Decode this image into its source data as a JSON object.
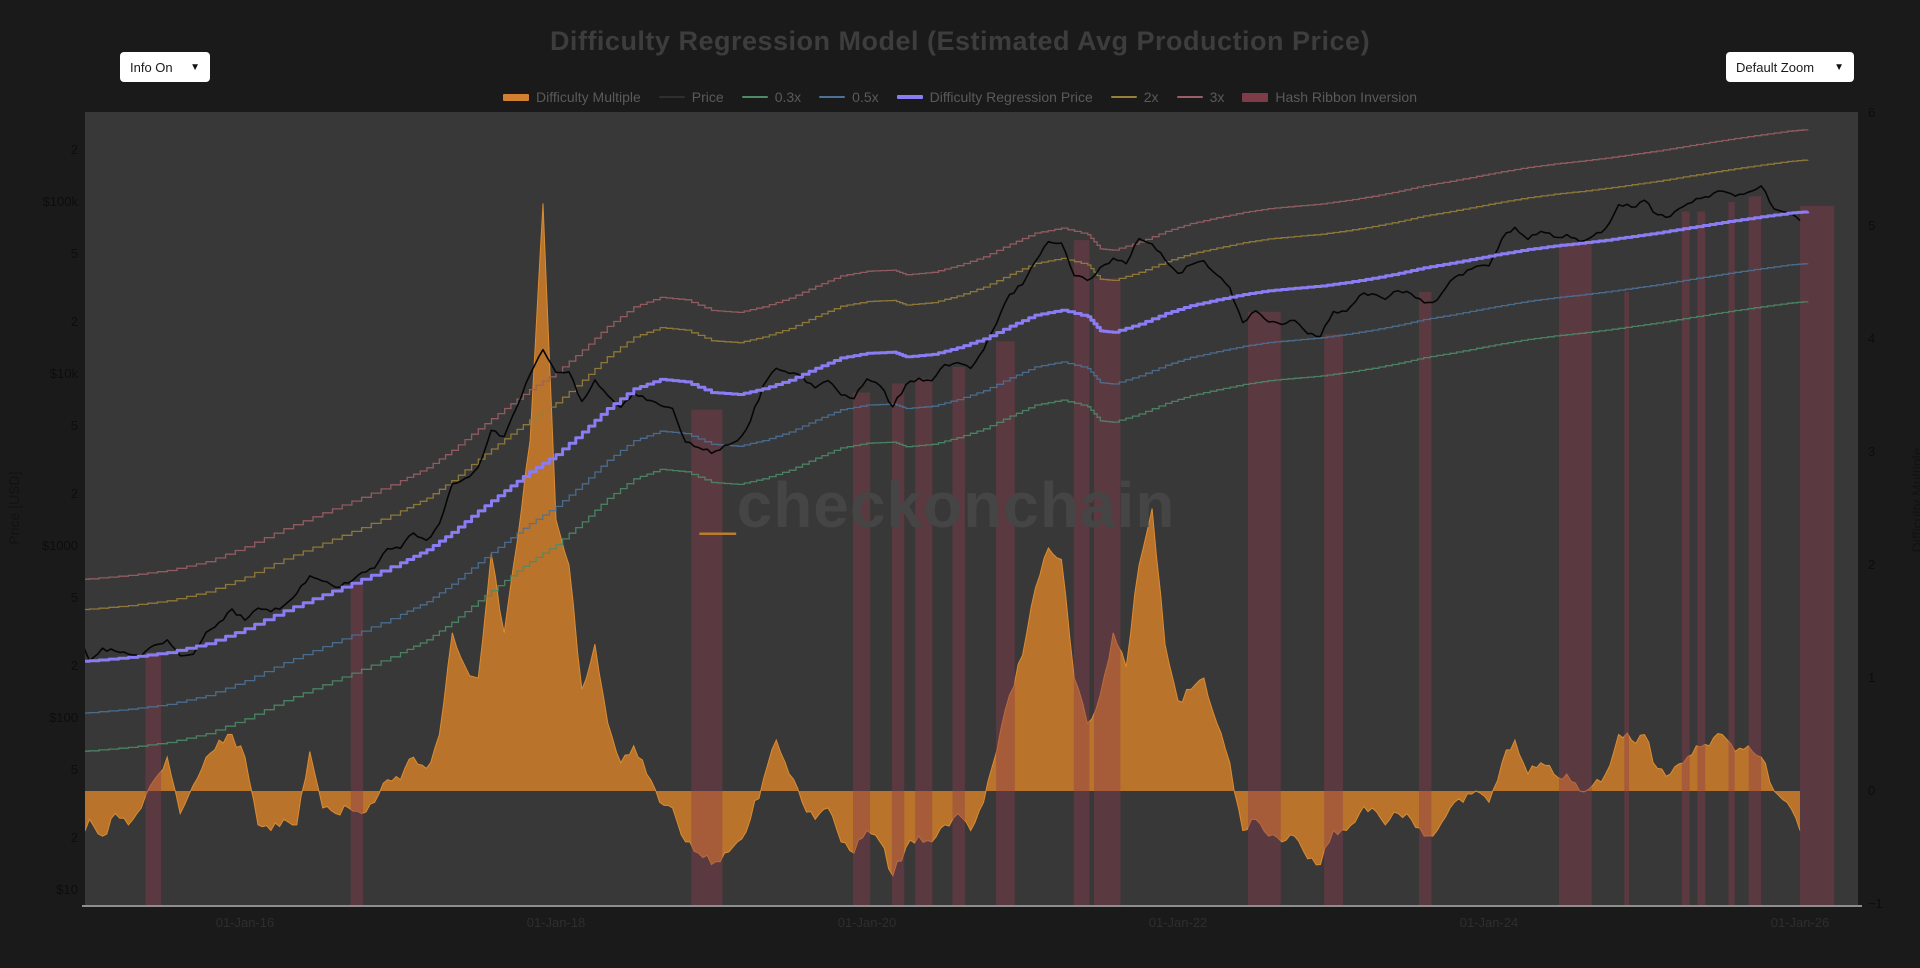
{
  "header": {
    "title": "Difficulty Regression Model (Estimated Avg Production Price)",
    "info_dropdown": {
      "label": "Info On",
      "arrow": "▼"
    },
    "zoom_dropdown": {
      "label": "Default Zoom",
      "arrow": "▼"
    }
  },
  "watermark": {
    "underscore": "_",
    "text": "checkonchain"
  },
  "legend": {
    "items": [
      {
        "label": "Difficulty Multiple",
        "color": "#d08030",
        "swatch": "thick"
      },
      {
        "label": "Price",
        "color": "#2f2f2f",
        "swatch": "line"
      },
      {
        "label": "0.3x",
        "color": "#4e8a68",
        "swatch": "line"
      },
      {
        "label": "0.5x",
        "color": "#4c7196",
        "swatch": "line"
      },
      {
        "label": "Difficulty Regression Price",
        "color": "#8a7cf2",
        "swatch": "medium"
      },
      {
        "label": "2x",
        "color": "#97803a",
        "swatch": "line"
      },
      {
        "label": "3x",
        "color": "#9a5f66",
        "swatch": "line"
      },
      {
        "label": "Hash Ribbon Inversion",
        "color": "#7e3b48",
        "swatch": "bar"
      }
    ]
  },
  "axes": {
    "y_price": {
      "title": "Price [USD]",
      "ticks": [
        {
          "label": "2",
          "value": 200000
        },
        {
          "label": "$100k",
          "value": 100000
        },
        {
          "label": "5",
          "value": 50000
        },
        {
          "label": "2",
          "value": 20000
        },
        {
          "label": "$10k",
          "value": 10000
        },
        {
          "label": "5",
          "value": 5000
        },
        {
          "label": "2",
          "value": 2000
        },
        {
          "label": "$1000",
          "value": 1000
        },
        {
          "label": "5",
          "value": 500
        },
        {
          "label": "2",
          "value": 200
        },
        {
          "label": "$100",
          "value": 100
        },
        {
          "label": "5",
          "value": 50
        },
        {
          "label": "2",
          "value": 20
        },
        {
          "label": "$10",
          "value": 10
        }
      ]
    },
    "y_multiple": {
      "title": "Difficulty Multiple",
      "ticks": [
        {
          "label": "6",
          "value": 6
        },
        {
          "label": "5",
          "value": 5
        },
        {
          "label": "4",
          "value": 4
        },
        {
          "label": "3",
          "value": 3
        },
        {
          "label": "2",
          "value": 2
        },
        {
          "label": "1",
          "value": 1
        },
        {
          "label": "0",
          "value": 0
        },
        {
          "label": "−1",
          "value": -1
        }
      ]
    },
    "x": {
      "ticks": [
        {
          "label": "01-Jan-16",
          "year": 2016
        },
        {
          "label": "01-Jan-18",
          "year": 2018
        },
        {
          "label": "01-Jan-20",
          "year": 2020
        },
        {
          "label": "01-Jan-22",
          "year": 2022
        },
        {
          "label": "01-Jan-24",
          "year": 2024
        },
        {
          "label": "01-Jan-26",
          "year": 2026
        }
      ]
    }
  },
  "chart_data": {
    "type": "line",
    "title": "Difficulty Regression Model (Estimated Avg Production Price)",
    "x_range_years": [
      2014.97,
      2026.37
    ],
    "y_axis_left": {
      "label": "Price [USD]",
      "scale": "log",
      "range": [
        8.2,
        333000
      ]
    },
    "y_axis_right": {
      "label": "Difficulty Multiple",
      "scale": "linear",
      "range": [
        -1.07,
        6.02
      ]
    },
    "monthly": {
      "start_year": 2014.8333,
      "step_years": 0.0833333
    },
    "series": [
      {
        "name": "Difficulty Multiple",
        "axis": "right",
        "type": "area",
        "stroke": "#d98c33",
        "fill": "#c1762a",
        "fill_opacity": 0.95,
        "width": 1,
        "values": [
          0.45,
          -0.55,
          -0.25,
          -0.4,
          -0.2,
          -0.3,
          -0.15,
          0.1,
          0.3,
          -0.2,
          0.05,
          0.3,
          0.45,
          0.5,
          0.3,
          -0.3,
          -0.35,
          -0.25,
          -0.3,
          0.35,
          -0.15,
          -0.2,
          -0.15,
          -0.2,
          -0.1,
          0.1,
          0.1,
          0.3,
          0.2,
          0.5,
          1.4,
          1.1,
          1.0,
          2.1,
          1.4,
          2.2,
          3.1,
          5.2,
          2.4,
          2.0,
          0.9,
          1.3,
          0.6,
          0.25,
          0.4,
          0.15,
          -0.1,
          -0.15,
          -0.45,
          -0.55,
          -0.65,
          -0.55,
          -0.45,
          -0.25,
          0.1,
          0.45,
          0.15,
          -0.1,
          -0.25,
          -0.15,
          -0.45,
          -0.55,
          -0.35,
          -0.45,
          -0.75,
          -0.5,
          -0.4,
          -0.45,
          -0.3,
          -0.2,
          -0.35,
          -0.1,
          0.35,
          0.85,
          1.2,
          1.8,
          2.15,
          2.05,
          1.0,
          0.6,
          0.85,
          1.4,
          1.1,
          2.0,
          2.5,
          1.3,
          0.8,
          0.9,
          1.0,
          0.6,
          0.25,
          -0.35,
          -0.25,
          -0.4,
          -0.45,
          -0.4,
          -0.6,
          -0.65,
          -0.35,
          -0.35,
          -0.2,
          -0.15,
          -0.3,
          -0.2,
          -0.25,
          -0.4,
          -0.35,
          -0.15,
          -0.1,
          0.0,
          -0.1,
          0.25,
          0.45,
          0.15,
          0.25,
          0.15,
          0.15,
          0.0,
          0.05,
          0.15,
          0.5,
          0.45,
          0.5,
          0.2,
          0.15,
          0.25,
          0.4,
          0.4,
          0.5,
          0.35,
          0.4,
          0.3,
          0.0,
          -0.1,
          -0.35
        ]
      },
      {
        "name": "Price",
        "axis": "left",
        "type": "line",
        "stroke": "#060606",
        "width": 1.6,
        "values": [
          375,
          320,
          215,
          255,
          245,
          235,
          230,
          265,
          285,
          230,
          235,
          315,
          360,
          430,
          370,
          435,
          415,
          450,
          530,
          670,
          625,
          575,
          610,
          700,
          745,
          965,
          970,
          1190,
          1080,
          1350,
          2300,
          2480,
          2875,
          4700,
          4340,
          6470,
          9950,
          13850,
          10200,
          10300,
          6930,
          9240,
          7500,
          6400,
          7780,
          7040,
          6600,
          6300,
          4020,
          3740,
          3460,
          3850,
          4100,
          5320,
          8560,
          10800,
          10080,
          9600,
          8300,
          9150,
          7550,
          7190,
          9350,
          8550,
          6440,
          8650,
          9450,
          9140,
          11350,
          11650,
          10780,
          13800,
          19700,
          29000,
          33100,
          45200,
          58800,
          57750,
          37300,
          35000,
          41600,
          47100,
          43800,
          61300,
          57000,
          46200,
          38500,
          43200,
          45500,
          37700,
          31800,
          19900,
          23300,
          20050,
          19400,
          20500,
          17150,
          16550,
          23100,
          23150,
          28500,
          29250,
          27200,
          30450,
          29250,
          25950,
          26950,
          34650,
          37700,
          42250,
          42550,
          61200,
          71300,
          60650,
          67500,
          62700,
          64600,
          58950,
          63300,
          70200,
          96400,
          93400,
          102400,
          84400,
          82550,
          94200,
          104600,
          107100,
          115800,
          108200,
          114000,
          124000,
          91000,
          87000,
          78000
        ]
      },
      {
        "name": "Difficulty Regression Price",
        "axis": "left",
        "type": "step",
        "stroke": "#8a7cf2",
        "width": 3,
        "points": [
          [
            2014.833,
            210
          ],
          [
            2015.0,
            215
          ],
          [
            2015.25,
            225
          ],
          [
            2015.5,
            240
          ],
          [
            2015.75,
            270
          ],
          [
            2016.0,
            330
          ],
          [
            2016.25,
            420
          ],
          [
            2016.5,
            520
          ],
          [
            2016.75,
            640
          ],
          [
            2017.0,
            800
          ],
          [
            2017.17,
            950
          ],
          [
            2017.33,
            1200
          ],
          [
            2017.5,
            1600
          ],
          [
            2017.67,
            2100
          ],
          [
            2017.83,
            2700
          ],
          [
            2018.0,
            3400
          ],
          [
            2018.17,
            4600
          ],
          [
            2018.33,
            6300
          ],
          [
            2018.5,
            8200
          ],
          [
            2018.67,
            9300
          ],
          [
            2018.83,
            9000
          ],
          [
            2019.0,
            7800
          ],
          [
            2019.17,
            7600
          ],
          [
            2019.33,
            8200
          ],
          [
            2019.5,
            9200
          ],
          [
            2019.67,
            10800
          ],
          [
            2019.83,
            12400
          ],
          [
            2020.0,
            13200
          ],
          [
            2020.17,
            13400
          ],
          [
            2020.25,
            12600
          ],
          [
            2020.42,
            13000
          ],
          [
            2020.58,
            14200
          ],
          [
            2020.75,
            16000
          ],
          [
            2020.92,
            19000
          ],
          [
            2021.08,
            22000
          ],
          [
            2021.25,
            23500
          ],
          [
            2021.42,
            21500
          ],
          [
            2021.5,
            17800
          ],
          [
            2021.58,
            17500
          ],
          [
            2021.75,
            19500
          ],
          [
            2021.92,
            22500
          ],
          [
            2022.08,
            25000
          ],
          [
            2022.25,
            27000
          ],
          [
            2022.42,
            29000
          ],
          [
            2022.58,
            30500
          ],
          [
            2022.75,
            31500
          ],
          [
            2022.92,
            32500
          ],
          [
            2023.08,
            34000
          ],
          [
            2023.25,
            36000
          ],
          [
            2023.42,
            38500
          ],
          [
            2023.58,
            41500
          ],
          [
            2023.75,
            44000
          ],
          [
            2023.92,
            47000
          ],
          [
            2024.08,
            50000
          ],
          [
            2024.25,
            53000
          ],
          [
            2024.42,
            55500
          ],
          [
            2024.58,
            57500
          ],
          [
            2024.75,
            60000
          ],
          [
            2024.92,
            63000
          ],
          [
            2025.08,
            66000
          ],
          [
            2025.25,
            70000
          ],
          [
            2025.42,
            74000
          ],
          [
            2025.58,
            78000
          ],
          [
            2025.75,
            82000
          ],
          [
            2025.92,
            86000
          ],
          [
            2026.05,
            88000
          ]
        ]
      },
      {
        "name": "0.3x",
        "axis": "left",
        "type": "band",
        "multiplier": 0.3,
        "stroke": "#4e8a68",
        "width": 1.3
      },
      {
        "name": "0.5x",
        "axis": "left",
        "type": "band",
        "multiplier": 0.5,
        "stroke": "#4c7196",
        "width": 1.3
      },
      {
        "name": "2x",
        "axis": "left",
        "type": "band",
        "multiplier": 2,
        "stroke": "#97803a",
        "width": 1.3
      },
      {
        "name": "3x",
        "axis": "left",
        "type": "band",
        "multiplier": 3,
        "stroke": "#9a5f66",
        "width": 1.3
      }
    ],
    "hash_ribbon_inversion": {
      "name": "Hash Ribbon Inversion",
      "color": "#8a3e4c",
      "opacity": 0.42,
      "bars": [
        [
          2015.36,
          2015.46,
          240
        ],
        [
          2016.68,
          2016.76,
          600
        ],
        [
          2018.87,
          2019.07,
          6200
        ],
        [
          2019.91,
          2020.02,
          7800
        ],
        [
          2020.16,
          2020.24,
          8800
        ],
        [
          2020.31,
          2020.42,
          9400
        ],
        [
          2020.55,
          2020.63,
          11000
        ],
        [
          2020.83,
          2020.95,
          15500
        ],
        [
          2021.33,
          2021.43,
          60000
        ],
        [
          2021.46,
          2021.63,
          36000
        ],
        [
          2022.45,
          2022.66,
          23000
        ],
        [
          2022.94,
          2023.06,
          17000
        ],
        [
          2023.55,
          2023.63,
          30000
        ],
        [
          2024.45,
          2024.66,
          58000
        ],
        [
          2024.87,
          2024.9,
          30000
        ],
        [
          2025.24,
          2025.29,
          88000
        ],
        [
          2025.34,
          2025.39,
          88000
        ],
        [
          2025.54,
          2025.58,
          100000
        ],
        [
          2025.67,
          2025.75,
          108000
        ],
        [
          2026.0,
          2026.22,
          95000
        ]
      ]
    },
    "plot_background": "#383838",
    "page_background": "#1a1a1a",
    "legend_position": "top-center",
    "grid": false
  }
}
